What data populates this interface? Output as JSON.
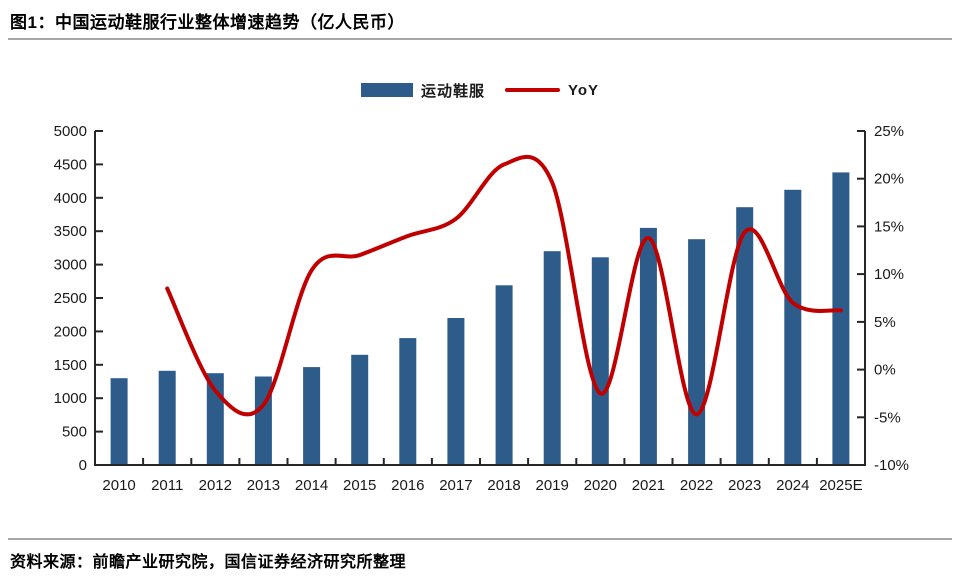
{
  "page": {
    "title": "图1：中国运动鞋服行业整体增速趋势（亿人民币）",
    "source_note": "资料来源：前瞻产业研究院，国信证券经济研究所整理"
  },
  "legend": {
    "bar_label": "运动鞋服",
    "line_label": "YoY"
  },
  "colors": {
    "bar": "#2D5C8A",
    "line": "#C00000",
    "axis": "#262626",
    "text": "#1A1A1A",
    "separator": "#A6A6A6",
    "background": "#FFFFFF"
  },
  "chart_data": {
    "type": "bar",
    "combo": "bar+line dual axis",
    "title": "中国运动鞋服行业整体增速趋势（亿人民币）",
    "categories": [
      "2010",
      "2011",
      "2012",
      "2013",
      "2014",
      "2015",
      "2016",
      "2017",
      "2018",
      "2019",
      "2020",
      "2021",
      "2022",
      "2023",
      "2024",
      "2025E"
    ],
    "series": [
      {
        "name": "运动鞋服",
        "type": "bar",
        "axis": "left",
        "unit": "亿人民币",
        "values": [
          1300,
          1410,
          1375,
          1325,
          1465,
          1650,
          1900,
          2200,
          2690,
          3200,
          3110,
          3550,
          3380,
          3860,
          4120,
          4380
        ]
      },
      {
        "name": "YoY",
        "type": "line",
        "axis": "right",
        "unit": "%",
        "values": [
          null,
          8.5,
          -2.2,
          -3.7,
          10.4,
          12.0,
          14.0,
          15.8,
          21.5,
          19.6,
          -2.5,
          13.8,
          -4.7,
          14.4,
          7.0,
          6.2
        ]
      }
    ],
    "left_axis": {
      "min": 0,
      "max": 5000,
      "step": 500,
      "tick_labels": [
        "0",
        "500",
        "1000",
        "1500",
        "2000",
        "2500",
        "3000",
        "3500",
        "4000",
        "4500",
        "5000"
      ]
    },
    "right_axis": {
      "min": -10,
      "max": 25,
      "step": 5,
      "tick_labels": [
        "-10%",
        "-5%",
        "0%",
        "5%",
        "10%",
        "15%",
        "20%",
        "25%"
      ]
    },
    "grid": false,
    "legend_position": "top-center"
  }
}
